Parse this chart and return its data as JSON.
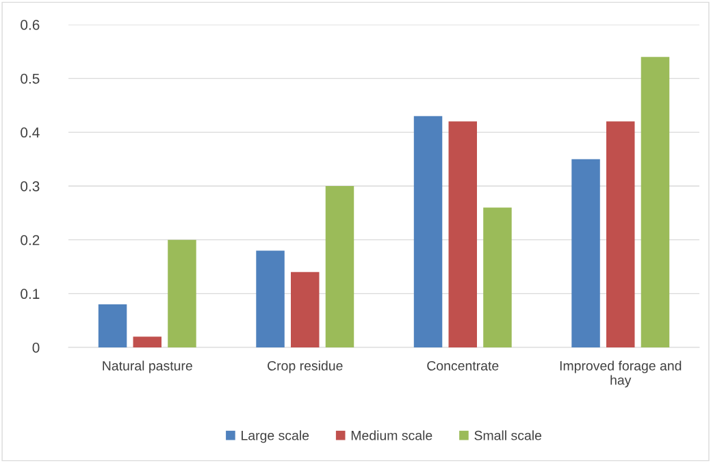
{
  "chart_data": {
    "type": "bar",
    "categories": [
      "Natural pasture",
      "Crop residue",
      "Concentrate",
      "Improved forage and hay"
    ],
    "series": [
      {
        "name": "Large scale",
        "color": "#4f81bd",
        "values": [
          0.08,
          0.18,
          0.43,
          0.35
        ]
      },
      {
        "name": "Medium scale",
        "color": "#c0504d",
        "values": [
          0.02,
          0.14,
          0.42,
          0.42
        ]
      },
      {
        "name": "Small scale",
        "color": "#9bbb59",
        "values": [
          0.2,
          0.3,
          0.26,
          0.54
        ]
      }
    ],
    "ylim": [
      0,
      0.6
    ],
    "yticks": [
      {
        "value": 0,
        "label": "0"
      },
      0.1,
      0.2,
      0.3,
      0.4,
      0.5,
      0.6
    ],
    "grid": "y",
    "legend": "bottom"
  }
}
